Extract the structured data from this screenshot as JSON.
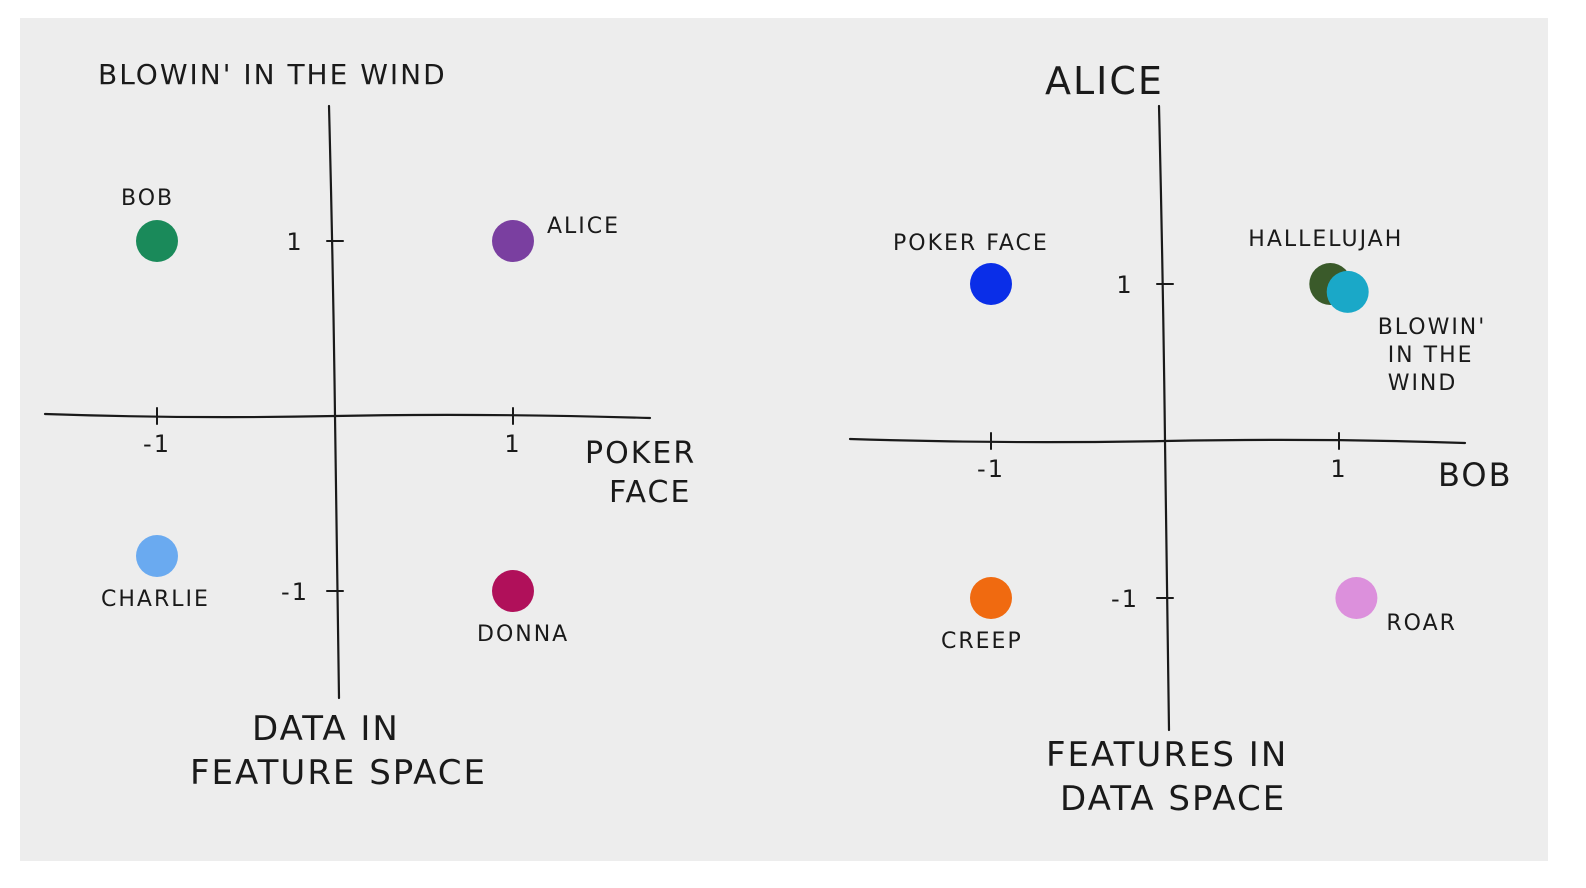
{
  "chart_data": [
    {
      "type": "scatter",
      "title": "DATA IN FEATURE SPACE",
      "xlabel": "POKER FACE",
      "ylabel": "BLOWIN' IN THE WIND",
      "xlim": [
        -1.6,
        1.6
      ],
      "ylim": [
        -1.8,
        1.8
      ],
      "grid": false,
      "xticks": [
        {
          "value": -1,
          "label": "-1"
        },
        {
          "value": 1,
          "label": "1"
        }
      ],
      "yticks": [
        {
          "value": 1,
          "label": "1"
        },
        {
          "value": -1,
          "label": "-1"
        }
      ],
      "points": [
        {
          "label": "BOB",
          "x": -1.0,
          "y": 1.0,
          "color": "#1a8a5a"
        },
        {
          "label": "ALICE",
          "x": 1.0,
          "y": 1.0,
          "color": "#7a3fa0"
        },
        {
          "label": "CHARLIE",
          "x": -1.0,
          "y": -0.8,
          "color": "#6aaaf0"
        },
        {
          "label": "DONNA",
          "x": 1.0,
          "y": -1.0,
          "color": "#b0105a"
        }
      ]
    },
    {
      "type": "scatter",
      "title": "FEATURES IN DATA SPACE",
      "xlabel": "BOB",
      "ylabel": "ALICE",
      "xlim": [
        -1.8,
        1.8
      ],
      "ylim": [
        -1.6,
        1.6
      ],
      "grid": false,
      "xticks": [
        {
          "value": -1,
          "label": "-1"
        },
        {
          "value": 1,
          "label": "1"
        }
      ],
      "yticks": [
        {
          "value": 1,
          "label": "1"
        },
        {
          "value": -1,
          "label": "-1"
        }
      ],
      "points": [
        {
          "label": "POKER FACE",
          "x": -1.0,
          "y": 1.0,
          "color": "#0a2ee8"
        },
        {
          "label": "HALLELUJAH",
          "x": 0.95,
          "y": 1.0,
          "color": "#3a5a2a"
        },
        {
          "label": "BLOWIN' IN THE WIND",
          "x": 1.05,
          "y": 0.95,
          "color": "#1aa8c8"
        },
        {
          "label": "CREEP",
          "x": -1.0,
          "y": -1.0,
          "color": "#f06a10"
        },
        {
          "label": "ROAR",
          "x": 1.1,
          "y": -1.0,
          "color": "#dc90dc"
        }
      ]
    }
  ]
}
